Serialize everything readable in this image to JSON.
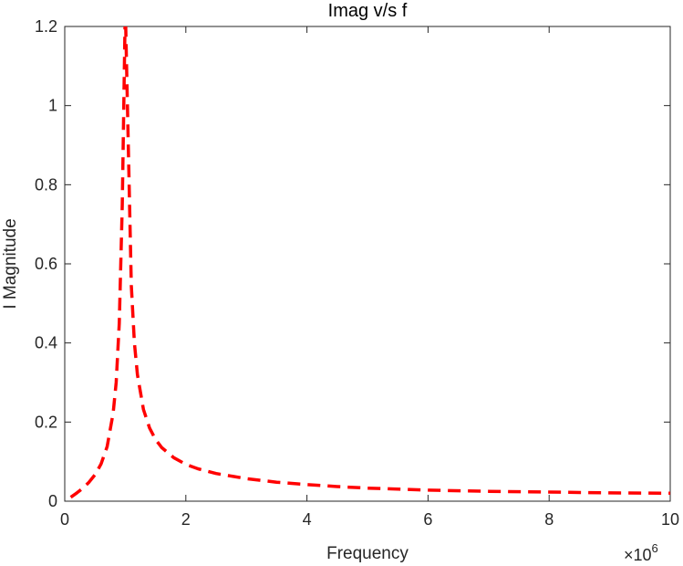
{
  "chart_data": {
    "type": "line",
    "title": "Imag v/s f",
    "xlabel": "Frequency",
    "ylabel": "I Magnitude",
    "x_exponent_label": "×10",
    "x_exponent_power": "6",
    "x_scale_factor": 1000000,
    "xlim": [
      0,
      10000000
    ],
    "ylim": [
      0,
      1.2
    ],
    "x_ticks": [
      0,
      2000000,
      4000000,
      6000000,
      8000000,
      10000000
    ],
    "x_tick_labels": [
      "0",
      "2",
      "4",
      "6",
      "8",
      "10"
    ],
    "y_ticks": [
      0,
      0.2,
      0.4,
      0.6,
      0.8,
      1.0,
      1.2
    ],
    "y_tick_labels": [
      "0",
      "0.2",
      "0.4",
      "0.6",
      "0.8",
      "1",
      "1.2"
    ],
    "grid": false,
    "box": true,
    "series": [
      {
        "color": "#ff0000",
        "line_style": "dashed",
        "x": [
          100000,
          200000,
          300000,
          400000,
          500000,
          600000,
          700000,
          800000,
          850000,
          900000,
          950000,
          1000000,
          1050000,
          1100000,
          1150000,
          1200000,
          1300000,
          1400000,
          1500000,
          1600000,
          1800000,
          2000000,
          2200000,
          2500000,
          3000000,
          3500000,
          4000000,
          4500000,
          5000000,
          6000000,
          7000000,
          8000000,
          9000000,
          10000000
        ],
        "y": [
          0.01,
          0.021,
          0.033,
          0.048,
          0.067,
          0.094,
          0.138,
          0.223,
          0.3,
          0.45,
          0.75,
          1.25,
          0.9,
          0.545,
          0.4,
          0.32,
          0.232,
          0.185,
          0.156,
          0.136,
          0.11,
          0.093,
          0.082,
          0.07,
          0.057,
          0.048,
          0.042,
          0.037,
          0.033,
          0.028,
          0.025,
          0.023,
          0.021,
          0.02
        ]
      }
    ]
  }
}
